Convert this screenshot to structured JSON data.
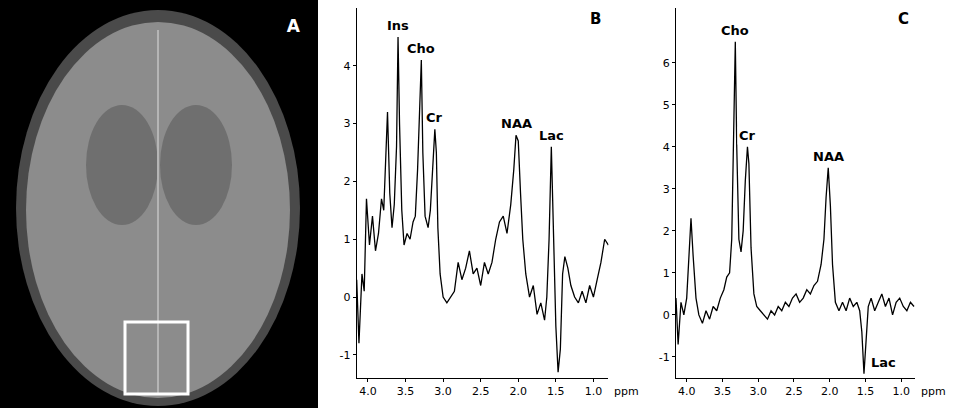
{
  "image": {
    "label": "A"
  },
  "chart_data": [
    {
      "type": "line",
      "label": "B",
      "x_label": "ppm",
      "color": "#000000",
      "grid": false,
      "x": [
        4.15,
        4.12,
        4.08,
        4.05,
        4.02,
        3.98,
        3.94,
        3.9,
        3.86,
        3.82,
        3.79,
        3.77,
        3.74,
        3.71,
        3.68,
        3.65,
        3.62,
        3.6,
        3.58,
        3.55,
        3.52,
        3.48,
        3.44,
        3.4,
        3.37,
        3.34,
        3.31,
        3.29,
        3.27,
        3.24,
        3.2,
        3.17,
        3.14,
        3.11,
        3.09,
        3.07,
        3.04,
        3.0,
        2.95,
        2.9,
        2.85,
        2.8,
        2.75,
        2.7,
        2.65,
        2.6,
        2.55,
        2.5,
        2.45,
        2.4,
        2.35,
        2.3,
        2.25,
        2.2,
        2.15,
        2.1,
        2.06,
        2.03,
        2.0,
        1.97,
        1.94,
        1.9,
        1.85,
        1.8,
        1.75,
        1.7,
        1.65,
        1.62,
        1.59,
        1.56,
        1.53,
        1.5,
        1.47,
        1.44,
        1.41,
        1.38,
        1.34,
        1.3,
        1.25,
        1.2,
        1.15,
        1.1,
        1.05,
        1.0,
        0.95,
        0.9,
        0.85,
        0.8
      ],
      "values": [
        0.3,
        -0.8,
        0.4,
        0.1,
        1.7,
        0.9,
        1.4,
        0.8,
        1.1,
        1.7,
        1.5,
        2.3,
        3.2,
        1.8,
        1.2,
        1.6,
        2.6,
        4.5,
        3.0,
        1.5,
        0.9,
        1.1,
        1.0,
        1.3,
        1.4,
        2.2,
        3.6,
        4.1,
        2.5,
        1.4,
        1.2,
        1.5,
        2.2,
        2.9,
        2.5,
        1.2,
        0.4,
        0.0,
        -0.1,
        0.0,
        0.1,
        0.6,
        0.3,
        0.5,
        0.8,
        0.4,
        0.5,
        0.2,
        0.6,
        0.4,
        0.6,
        1.0,
        1.3,
        1.4,
        1.1,
        1.6,
        2.2,
        2.8,
        2.7,
        1.8,
        1.0,
        0.4,
        0.0,
        0.2,
        -0.3,
        -0.1,
        -0.4,
        0.0,
        1.0,
        2.6,
        1.2,
        -0.5,
        -1.3,
        -0.9,
        0.4,
        0.7,
        0.5,
        0.2,
        0.0,
        -0.1,
        0.1,
        -0.1,
        0.2,
        0.0,
        0.3,
        0.6,
        1.0,
        0.9
      ],
      "xlim": [
        4.15,
        0.8
      ],
      "xticks": [
        {
          "value": 4,
          "label": "4.0"
        },
        {
          "value": 3.5,
          "label": "3.5"
        },
        {
          "value": 3,
          "label": "3.0"
        },
        {
          "value": 2.5,
          "label": "2.5"
        },
        {
          "value": 2,
          "label": "2.0"
        },
        {
          "value": 1.5,
          "label": "1.5"
        },
        {
          "value": 1,
          "label": "1.0"
        }
      ],
      "ylim": [
        -1.4,
        5.0
      ],
      "yticks": [
        -1,
        0,
        1,
        2,
        3,
        4
      ],
      "annotations": [
        {
          "text": "Ins",
          "x": 3.6,
          "y": 4.5
        },
        {
          "text": "Cho",
          "x": 3.29,
          "y": 4.1
        },
        {
          "text": "Cr",
          "x": 3.11,
          "y": 2.9
        },
        {
          "text": "NAA",
          "x": 2.03,
          "y": 2.8
        },
        {
          "text": "Lac",
          "x": 1.56,
          "y": 2.6
        }
      ]
    },
    {
      "type": "line",
      "label": "C",
      "x_label": "ppm",
      "color": "#000000",
      "grid": false,
      "x": [
        4.15,
        4.12,
        4.08,
        4.04,
        4.0,
        3.97,
        3.94,
        3.91,
        3.87,
        3.83,
        3.78,
        3.73,
        3.68,
        3.63,
        3.58,
        3.53,
        3.48,
        3.44,
        3.4,
        3.37,
        3.34,
        3.32,
        3.3,
        3.27,
        3.24,
        3.21,
        3.18,
        3.15,
        3.13,
        3.1,
        3.06,
        3.02,
        2.97,
        2.92,
        2.87,
        2.82,
        2.77,
        2.72,
        2.67,
        2.62,
        2.57,
        2.52,
        2.47,
        2.42,
        2.37,
        2.32,
        2.27,
        2.22,
        2.17,
        2.12,
        2.08,
        2.05,
        2.02,
        1.99,
        1.96,
        1.92,
        1.87,
        1.82,
        1.77,
        1.72,
        1.67,
        1.62,
        1.58,
        1.55,
        1.52,
        1.49,
        1.46,
        1.42,
        1.37,
        1.32,
        1.27,
        1.22,
        1.17,
        1.12,
        1.07,
        1.02,
        0.97,
        0.92,
        0.87,
        0.82
      ],
      "values": [
        0.4,
        -0.7,
        0.3,
        0.0,
        0.4,
        1.5,
        2.3,
        1.4,
        0.4,
        0.0,
        -0.2,
        0.1,
        -0.1,
        0.2,
        0.1,
        0.4,
        0.6,
        0.9,
        1.0,
        1.8,
        4.5,
        6.5,
        4.0,
        1.8,
        1.5,
        2.0,
        3.2,
        4.0,
        3.6,
        1.6,
        0.5,
        0.2,
        0.1,
        0.0,
        -0.1,
        0.1,
        0.0,
        0.2,
        0.1,
        0.3,
        0.2,
        0.4,
        0.5,
        0.3,
        0.4,
        0.6,
        0.5,
        0.7,
        0.8,
        1.2,
        1.8,
        2.8,
        3.5,
        2.6,
        1.2,
        0.3,
        0.1,
        0.3,
        0.1,
        0.4,
        0.2,
        0.3,
        0.1,
        -0.4,
        -1.4,
        -0.6,
        0.2,
        0.4,
        0.1,
        0.3,
        0.5,
        0.2,
        0.4,
        0.0,
        0.3,
        0.4,
        0.2,
        0.1,
        0.3,
        0.2
      ],
      "xlim": [
        4.15,
        0.8
      ],
      "xticks": [
        {
          "value": 4,
          "label": "4.0"
        },
        {
          "value": 3.5,
          "label": "3.5"
        },
        {
          "value": 3,
          "label": "3.0"
        },
        {
          "value": 2.5,
          "label": "2.5"
        },
        {
          "value": 2,
          "label": "2.0"
        },
        {
          "value": 1.5,
          "label": "1.5"
        },
        {
          "value": 1,
          "label": "1.0"
        }
      ],
      "ylim": [
        -1.5,
        7.3
      ],
      "yticks": [
        -1,
        0,
        1,
        2,
        3,
        4,
        5,
        6
      ],
      "annotations": [
        {
          "text": "Cho",
          "x": 3.32,
          "y": 6.5
        },
        {
          "text": "Cr",
          "x": 3.15,
          "y": 4.0
        },
        {
          "text": "NAA",
          "x": 2.02,
          "y": 3.5
        },
        {
          "text": "Lac",
          "x": 1.52,
          "y": -1.4
        }
      ]
    }
  ]
}
